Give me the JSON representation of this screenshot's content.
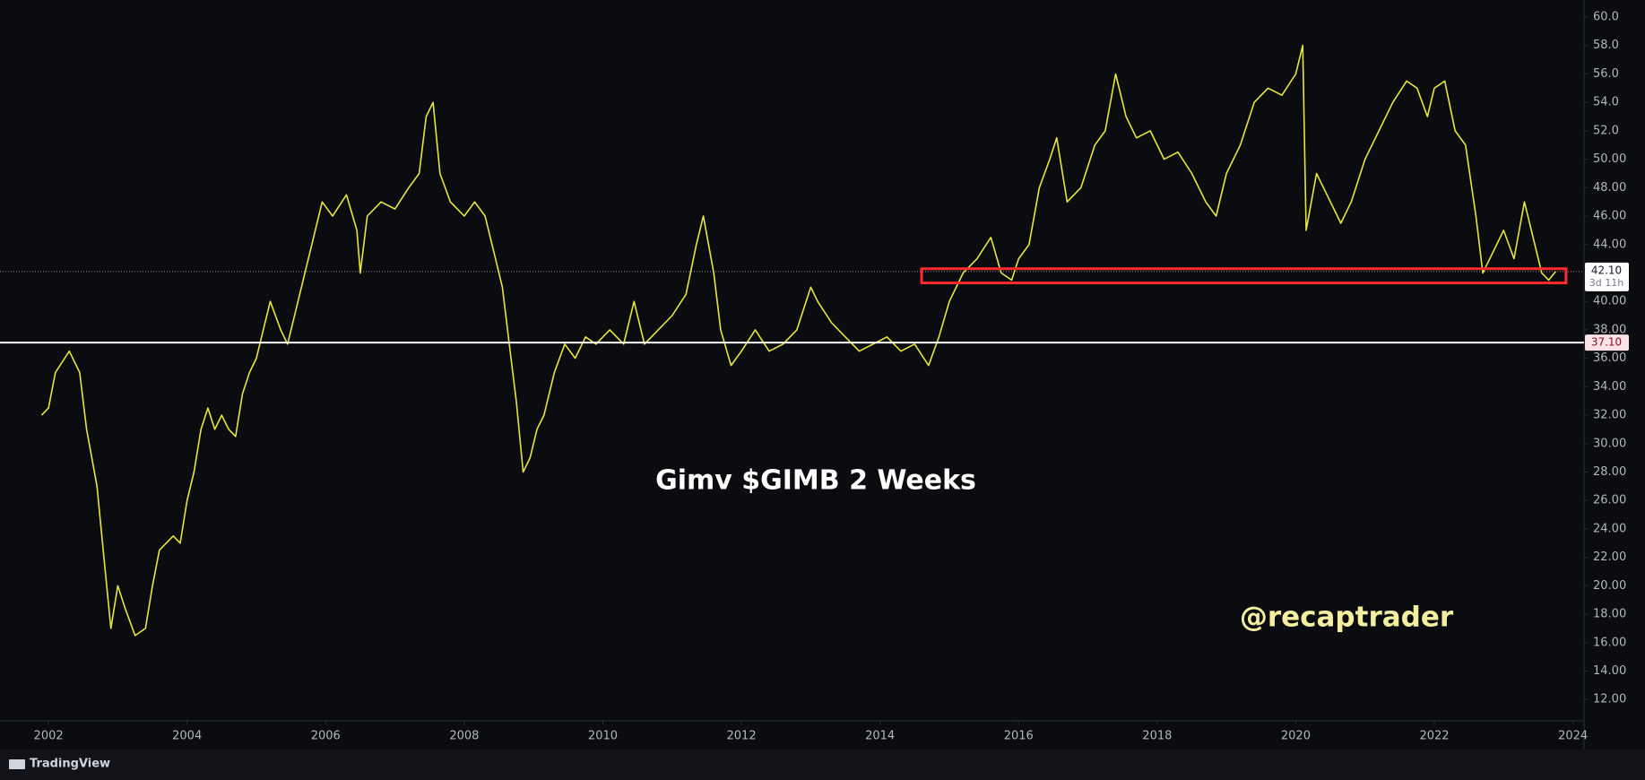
{
  "chart_data": {
    "type": "line",
    "title": "Gimv $GIMB 2 Weeks",
    "watermark": "@recaptrader",
    "brand": "TradingView",
    "x": [
      2001.9,
      2002.0,
      2002.1,
      2002.3,
      2002.45,
      2002.55,
      2002.7,
      2002.8,
      2002.9,
      2003.0,
      2003.1,
      2003.25,
      2003.4,
      2003.5,
      2003.6,
      2003.8,
      2003.9,
      2004.0,
      2004.1,
      2004.2,
      2004.3,
      2004.4,
      2004.5,
      2004.6,
      2004.7,
      2004.8,
      2004.9,
      2005.0,
      2005.1,
      2005.2,
      2005.35,
      2005.45,
      2005.6,
      2005.75,
      2005.95,
      2006.1,
      2006.3,
      2006.45,
      2006.5,
      2006.6,
      2006.8,
      2007.0,
      2007.2,
      2007.35,
      2007.45,
      2007.55,
      2007.65,
      2007.8,
      2008.0,
      2008.15,
      2008.3,
      2008.45,
      2008.55,
      2008.65,
      2008.75,
      2008.85,
      2008.95,
      2009.05,
      2009.15,
      2009.3,
      2009.45,
      2009.6,
      2009.75,
      2009.9,
      2010.1,
      2010.3,
      2010.45,
      2010.6,
      2010.8,
      2011.0,
      2011.2,
      2011.35,
      2011.45,
      2011.6,
      2011.7,
      2011.85,
      2012.0,
      2012.2,
      2012.4,
      2012.6,
      2012.8,
      2013.0,
      2013.1,
      2013.3,
      2013.5,
      2013.7,
      2013.9,
      2014.1,
      2014.3,
      2014.5,
      2014.7,
      2014.85,
      2015.0,
      2015.2,
      2015.4,
      2015.6,
      2015.75,
      2015.9,
      2016.0,
      2016.15,
      2016.3,
      2016.45,
      2016.55,
      2016.7,
      2016.9,
      2017.1,
      2017.25,
      2017.4,
      2017.55,
      2017.7,
      2017.9,
      2018.1,
      2018.3,
      2018.5,
      2018.7,
      2018.85,
      2019.0,
      2019.2,
      2019.4,
      2019.6,
      2019.8,
      2020.0,
      2020.1,
      2020.15,
      2020.3,
      2020.5,
      2020.65,
      2020.8,
      2021.0,
      2021.2,
      2021.4,
      2021.6,
      2021.75,
      2021.9,
      2022.0,
      2022.15,
      2022.3,
      2022.45,
      2022.6,
      2022.7,
      2022.85,
      2023.0,
      2023.15,
      2023.3,
      2023.45,
      2023.55,
      2023.65,
      2023.75
    ],
    "series": [
      {
        "color": "#e8e63a",
        "values": [
          32,
          32.5,
          35,
          36.5,
          35,
          31,
          27,
          22,
          17,
          20,
          18.5,
          16.5,
          17,
          20,
          22.5,
          23.5,
          23,
          26,
          28,
          31,
          32.5,
          31,
          32,
          31,
          30.5,
          33.5,
          35,
          36,
          38,
          40,
          38,
          37,
          40,
          43,
          47,
          46,
          47.5,
          45,
          42,
          46,
          47,
          46.5,
          48,
          49,
          53,
          54,
          49,
          47,
          46,
          47,
          46,
          43,
          41,
          37,
          33,
          28,
          29,
          31,
          32,
          35,
          37,
          36,
          37.5,
          37,
          38,
          37,
          40,
          37,
          38,
          39,
          40.5,
          44,
          46,
          42,
          38,
          35.5,
          36.5,
          38,
          36.5,
          37,
          38,
          41,
          40,
          38.5,
          37.5,
          36.5,
          37,
          37.5,
          36.5,
          37,
          35.5,
          37.5,
          40,
          42,
          43,
          44.5,
          42,
          41.5,
          43,
          44,
          48,
          50,
          51.5,
          47,
          48,
          51,
          52,
          56,
          53,
          51.5,
          52,
          50,
          50.5,
          49,
          47,
          46,
          49,
          51,
          54,
          55,
          54.5,
          56,
          58,
          45,
          49,
          47,
          45.5,
          47,
          50,
          52,
          54,
          55.5,
          55,
          53,
          55,
          55.5,
          52,
          51,
          46,
          42,
          43.5,
          45,
          43,
          47,
          44,
          42,
          41.5,
          42.1
        ]
      }
    ],
    "xlim": [
      2001.3,
      2024.16
    ],
    "xticks": [
      2002,
      2004,
      2006,
      2008,
      2010,
      2012,
      2014,
      2016,
      2018,
      2020,
      2022,
      2024
    ],
    "ylim": [
      10.5,
      61.2
    ],
    "yticks": [
      {
        "value": 12,
        "label": "12.00"
      },
      {
        "value": 14,
        "label": "14.00"
      },
      {
        "value": 16,
        "label": "16.00"
      },
      {
        "value": 18,
        "label": "18.00"
      },
      {
        "value": 20,
        "label": "20.00"
      },
      {
        "value": 22,
        "label": "22.00"
      },
      {
        "value": 24,
        "label": "24.00"
      },
      {
        "value": 26,
        "label": "26.00"
      },
      {
        "value": 28,
        "label": "28.00"
      },
      {
        "value": 30,
        "label": "30.00"
      },
      {
        "value": 32,
        "label": "32.00"
      },
      {
        "value": 34,
        "label": "34.00"
      },
      {
        "value": 36,
        "label": "36.00"
      },
      {
        "value": 38,
        "label": "38.00"
      },
      {
        "value": 40,
        "label": "40.00"
      },
      {
        "value": 42,
        "label": "42.00"
      },
      {
        "value": 44,
        "label": "44.00"
      },
      {
        "value": 46,
        "label": "46.00"
      },
      {
        "value": 48,
        "label": "48.00"
      },
      {
        "value": 50,
        "label": "50.00"
      },
      {
        "value": 52,
        "label": "52.0"
      },
      {
        "value": 54,
        "label": "54.0"
      },
      {
        "value": 56,
        "label": "56.0"
      },
      {
        "value": 58,
        "label": "58.0"
      },
      {
        "value": 60,
        "label": "60.0"
      }
    ],
    "support_line": {
      "value": 37.1,
      "label": "37.10",
      "color": "#ffffff"
    },
    "last_price": {
      "value": 42.1,
      "label": "42.10",
      "countdown": "3d 11h"
    },
    "zone": {
      "x": [
        2014.6,
        2023.9
      ],
      "y": [
        41.3,
        42.3
      ],
      "color": "#ff2a2a"
    }
  }
}
